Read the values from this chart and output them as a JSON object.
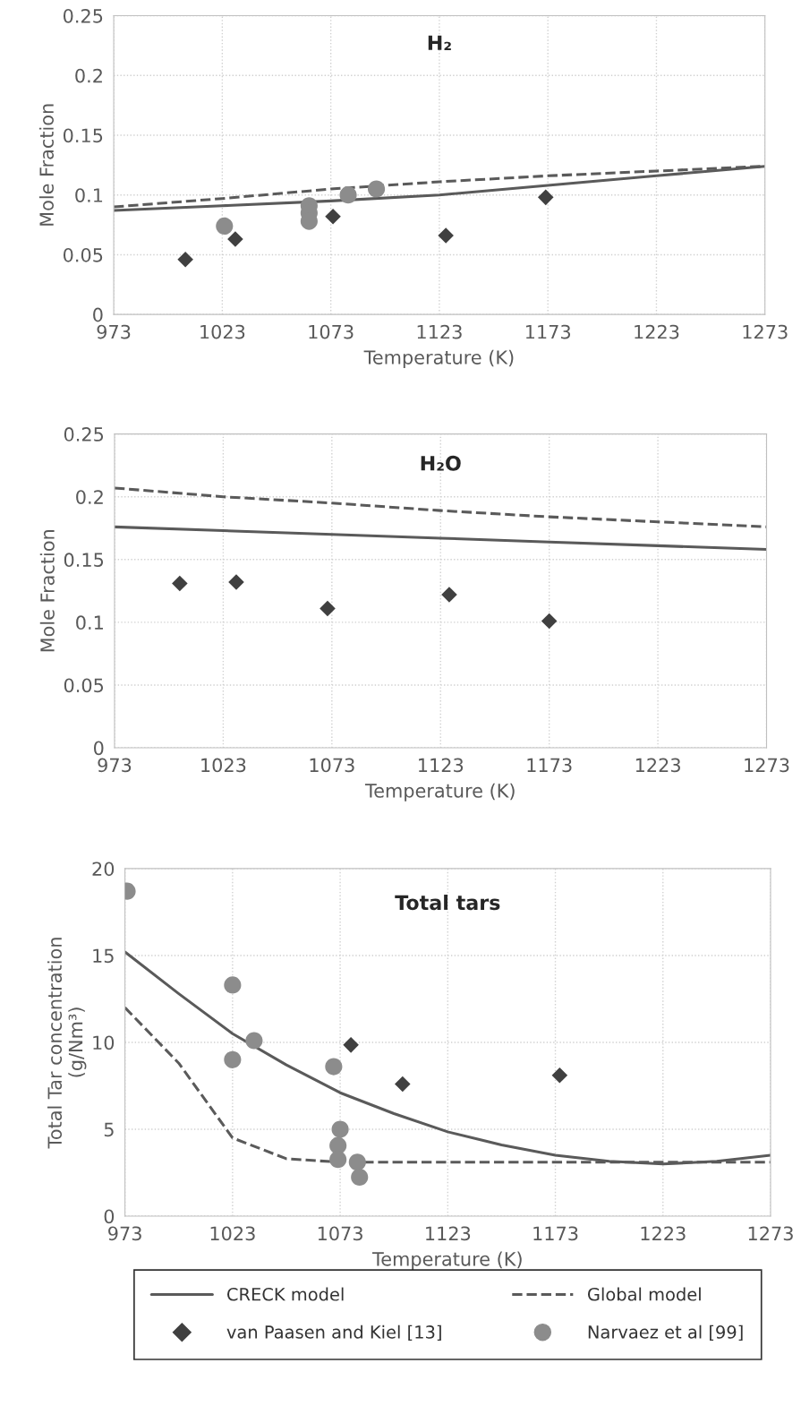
{
  "chart_data": [
    {
      "type": "line",
      "title": "H₂",
      "xlabel": "Temperature (K)",
      "ylabel": "Mole Fraction",
      "xlim": [
        973,
        1273
      ],
      "xticks": [
        973,
        1023,
        1073,
        1123,
        1173,
        1223,
        1273
      ],
      "ylim": [
        0,
        0.25
      ],
      "yticks": [
        0,
        0.05,
        0.1,
        0.15,
        0.2,
        0.25
      ],
      "grid": true,
      "legend": false,
      "series": [
        {
          "line_style": "solid",
          "marker": "none",
          "color": "#5a5a5a",
          "x": [
            973,
            1023,
            1073,
            1123,
            1173,
            1223,
            1273
          ],
          "values": [
            0.087,
            0.091,
            0.095,
            0.1,
            0.108,
            0.116,
            0.124
          ]
        },
        {
          "line_style": "dashed",
          "marker": "none",
          "color": "#5a5a5a",
          "x": [
            973,
            1023,
            1073,
            1123,
            1173,
            1223,
            1273
          ],
          "values": [
            0.09,
            0.097,
            0.105,
            0.111,
            0.116,
            0.12,
            0.124
          ]
        },
        {
          "type": "scatter",
          "marker": "diamond",
          "color": "#404040",
          "x": [
            1006,
            1029,
            1074,
            1126,
            1172
          ],
          "values": [
            0.046,
            0.063,
            0.082,
            0.066,
            0.098
          ]
        },
        {
          "type": "scatter",
          "marker": "circle",
          "color": "#8c8c8c",
          "x": [
            1024,
            1063,
            1063,
            1063,
            1081,
            1094
          ],
          "values": [
            0.074,
            0.091,
            0.085,
            0.078,
            0.1,
            0.105
          ]
        }
      ]
    },
    {
      "type": "line",
      "title": "H₂O",
      "xlabel": "Temperature (K)",
      "ylabel": "Mole Fraction",
      "xlim": [
        973,
        1273
      ],
      "xticks": [
        973,
        1023,
        1073,
        1123,
        1173,
        1223,
        1273
      ],
      "ylim": [
        0,
        0.25
      ],
      "yticks": [
        0,
        0.05,
        0.1,
        0.15,
        0.2,
        0.25
      ],
      "grid": true,
      "legend": false,
      "series": [
        {
          "line_style": "solid",
          "marker": "none",
          "color": "#5a5a5a",
          "x": [
            973,
            1023,
            1073,
            1123,
            1173,
            1223,
            1273
          ],
          "values": [
            0.176,
            0.173,
            0.17,
            0.167,
            0.164,
            0.161,
            0.158
          ]
        },
        {
          "line_style": "dashed",
          "marker": "none",
          "color": "#5a5a5a",
          "x": [
            973,
            1023,
            1073,
            1123,
            1173,
            1223,
            1273
          ],
          "values": [
            0.207,
            0.2,
            0.195,
            0.189,
            0.184,
            0.18,
            0.176
          ]
        },
        {
          "type": "scatter",
          "marker": "diamond",
          "color": "#404040",
          "x": [
            1003,
            1029,
            1071,
            1127,
            1173
          ],
          "values": [
            0.131,
            0.132,
            0.111,
            0.122,
            0.101
          ]
        }
      ]
    },
    {
      "type": "line",
      "title": "Total tars",
      "xlabel": "Temperature (K)",
      "ylabel": "Total Tar concentration\n(g/Nm³)",
      "xlim": [
        973,
        1273
      ],
      "xticks": [
        973,
        1023,
        1073,
        1123,
        1173,
        1223,
        1273
      ],
      "ylim": [
        0,
        20
      ],
      "yticks": [
        0,
        5,
        10,
        15,
        20
      ],
      "grid": true,
      "legend": "bottom",
      "series": [
        {
          "name": "CRECK model",
          "line_style": "solid",
          "marker": "none",
          "color": "#5a5a5a",
          "x": [
            973,
            998,
            1023,
            1048,
            1073,
            1098,
            1123,
            1148,
            1173,
            1198,
            1223,
            1248,
            1273
          ],
          "values": [
            15.2,
            12.8,
            10.5,
            8.7,
            7.1,
            5.9,
            4.85,
            4.1,
            3.5,
            3.15,
            3.0,
            3.15,
            3.5
          ]
        },
        {
          "name": "Global model",
          "line_style": "dashed",
          "marker": "none",
          "color": "#5a5a5a",
          "x": [
            973,
            998,
            1023,
            1048,
            1073,
            1123,
            1173,
            1223,
            1273
          ],
          "values": [
            12.0,
            8.8,
            4.5,
            3.3,
            3.1,
            3.1,
            3.1,
            3.1,
            3.1
          ]
        },
        {
          "name": "van Paasen and Kiel [13]",
          "type": "scatter",
          "marker": "diamond",
          "color": "#404040",
          "x": [
            1078,
            1102,
            1175
          ],
          "values": [
            9.85,
            7.6,
            8.1
          ]
        },
        {
          "name": "Narvaez et al [99]",
          "type": "scatter",
          "marker": "circle",
          "color": "#8c8c8c",
          "x": [
            974,
            1023,
            1023,
            1033,
            1070,
            1073,
            1072,
            1072,
            1081,
            1082
          ],
          "values": [
            18.7,
            13.3,
            9.0,
            10.1,
            8.6,
            5.0,
            4.06,
            3.26,
            3.1,
            2.24
          ]
        }
      ]
    }
  ]
}
